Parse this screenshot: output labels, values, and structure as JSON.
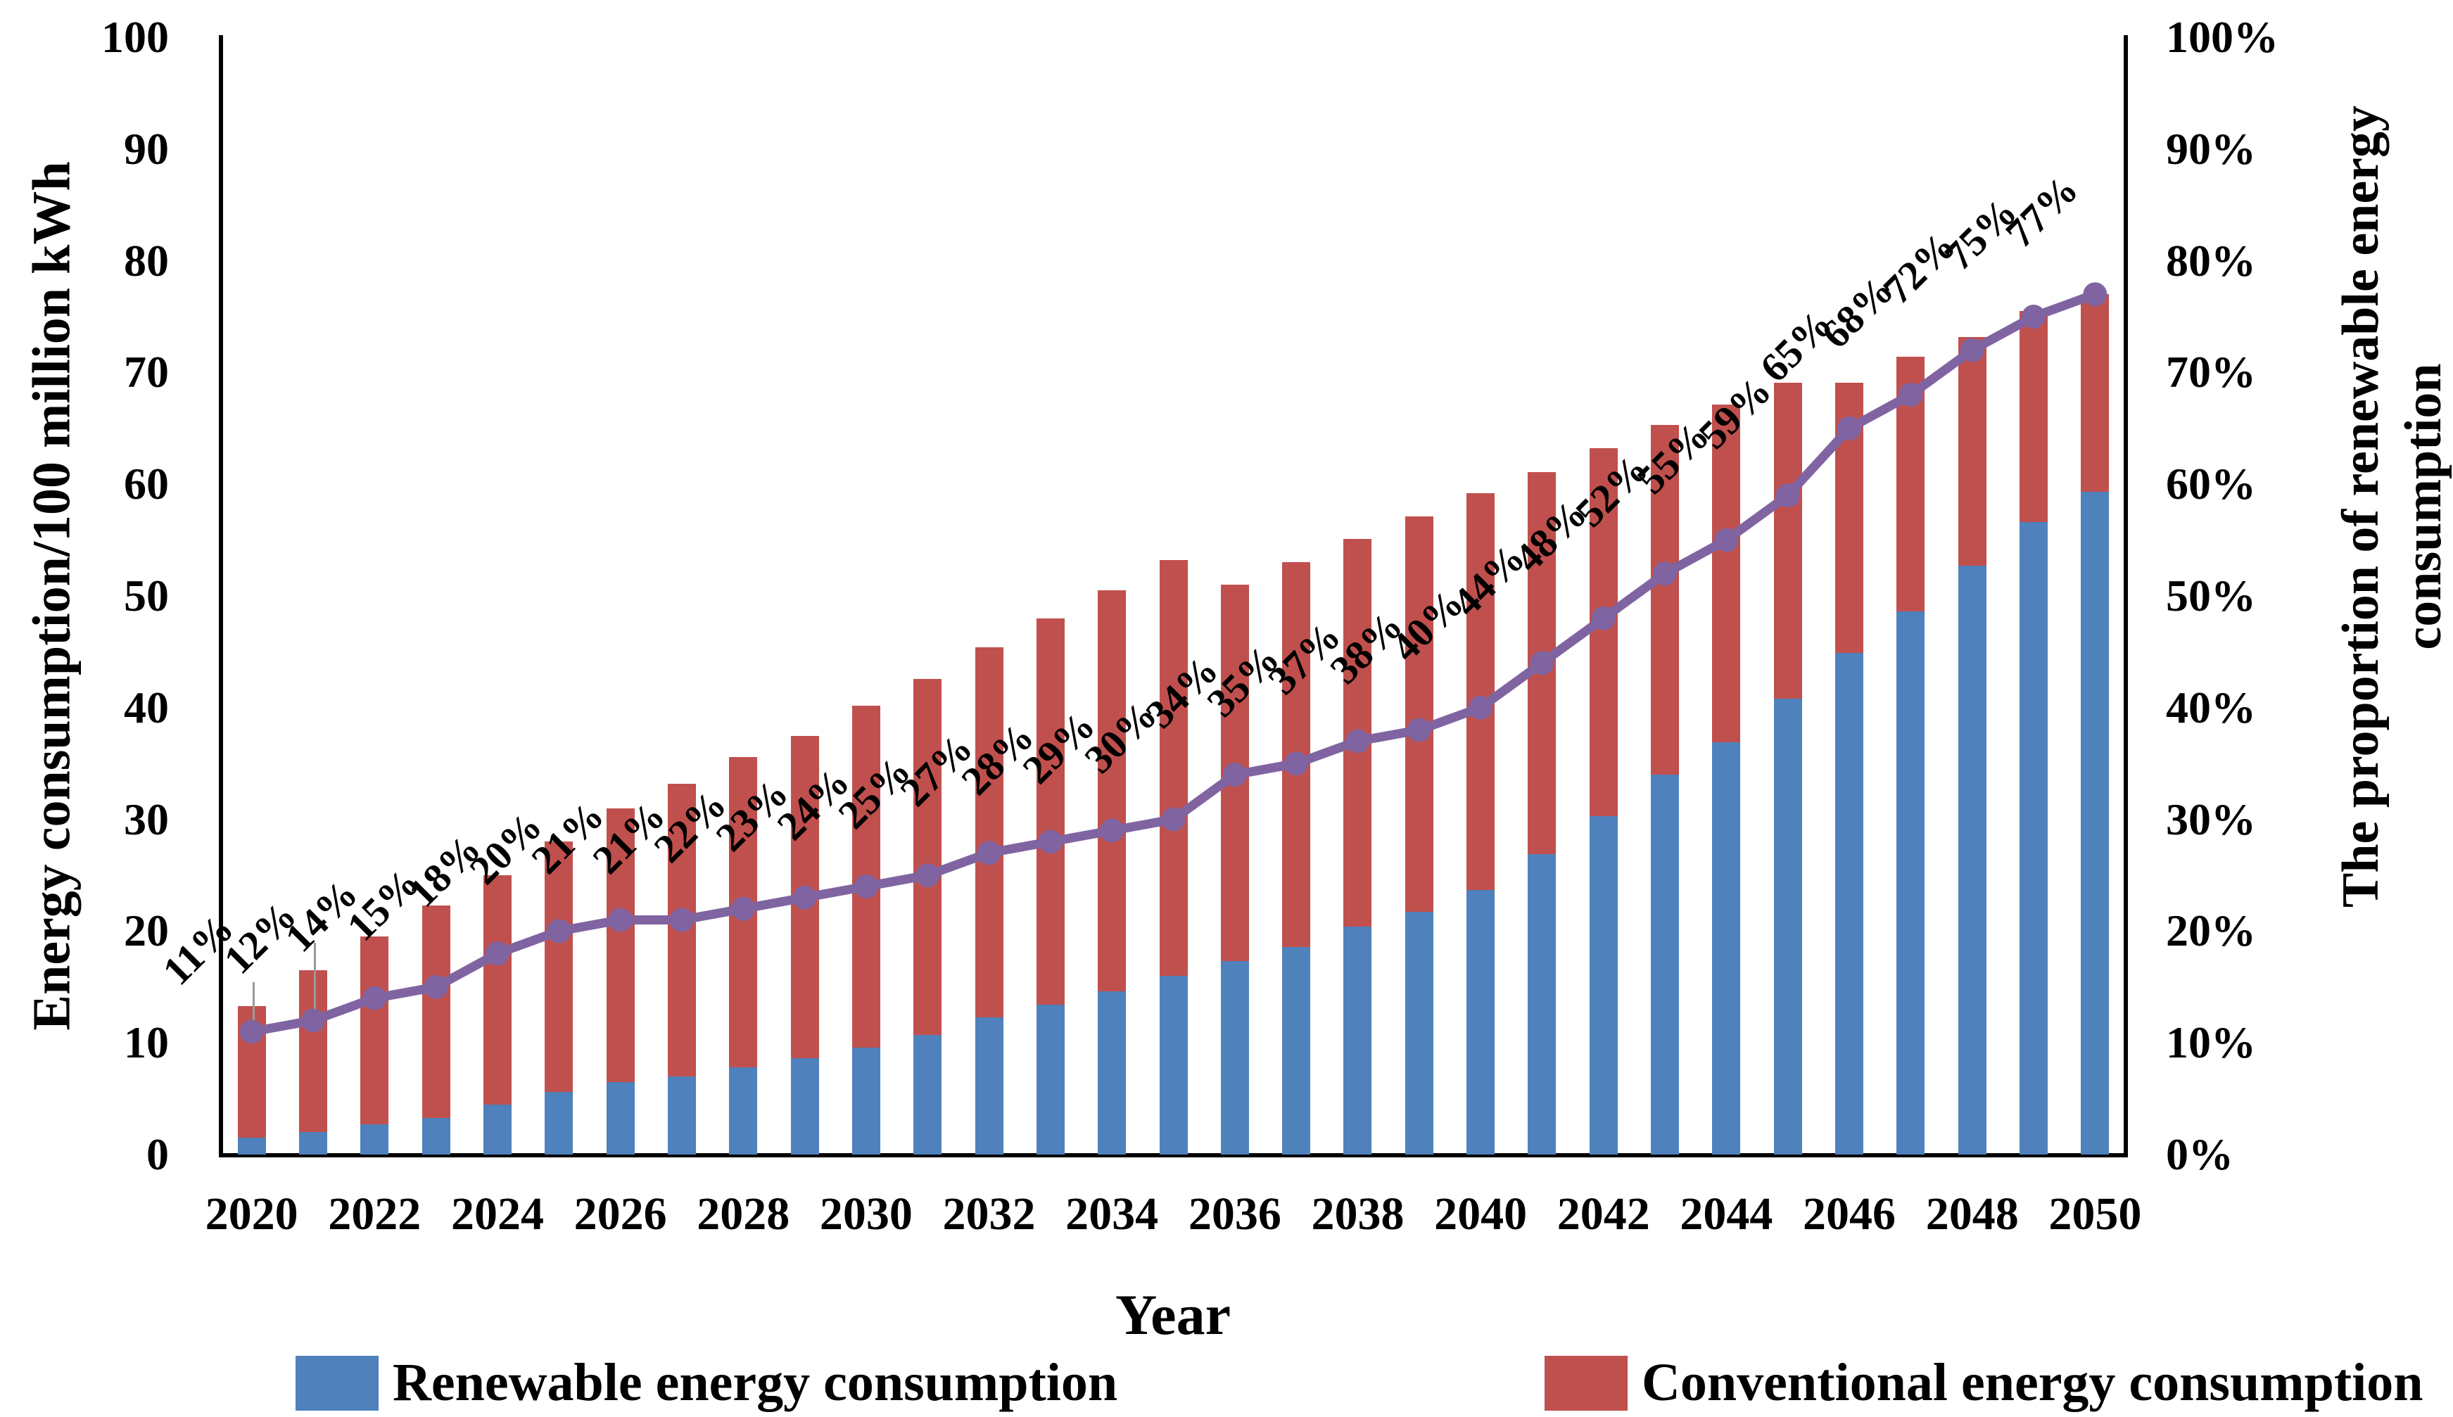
{
  "axes": {
    "left_title": "Energy consumption/100 million kWh",
    "right_title_line1": "The proportion of renewable energy",
    "right_title_line2": "consumption",
    "x_title": "Year",
    "left_ticks": [
      "0",
      "10",
      "20",
      "30",
      "40",
      "50",
      "60",
      "70",
      "80",
      "90",
      "100"
    ],
    "right_ticks": [
      "0%",
      "10%",
      "20%",
      "30%",
      "40%",
      "50%",
      "60%",
      "70%",
      "80%",
      "90%",
      "100%"
    ]
  },
  "legend": [
    {
      "label": "Renewable energy consumption",
      "color": "#4F81BD"
    },
    {
      "label": "Conventional energy consumption",
      "color": "#C0504D"
    }
  ],
  "colors": {
    "renewable": "#4F81BD",
    "conventional": "#C0504D",
    "proportion_line": "#8064A2",
    "axis": "#000000",
    "leader_line": "#9a9a9a"
  },
  "chart_data": {
    "type": "bar",
    "subtype": "stacked-with-line",
    "title": "",
    "xlabel": "Year",
    "ylabel": "Energy consumption/100 million kWh",
    "y2label": "The proportion of renewable energy consumption",
    "ylim": [
      0,
      100
    ],
    "y2lim_pct": [
      0,
      100
    ],
    "grid": false,
    "legend_position": "bottom",
    "x_tick_step": 2,
    "categories": [
      2020,
      2021,
      2022,
      2023,
      2024,
      2025,
      2026,
      2027,
      2028,
      2029,
      2030,
      2031,
      2032,
      2033,
      2034,
      2035,
      2036,
      2037,
      2038,
      2039,
      2040,
      2041,
      2042,
      2043,
      2044,
      2045,
      2046,
      2047,
      2048,
      2049,
      2050
    ],
    "series": [
      {
        "name": "Renewable energy consumption",
        "type": "bar-stack",
        "color": "#4F81BD",
        "values": [
          1.5,
          2.0,
          2.7,
          3.3,
          4.5,
          5.6,
          6.5,
          7.0,
          7.8,
          8.6,
          9.6,
          10.7,
          12.3,
          13.4,
          14.6,
          16.0,
          17.3,
          18.6,
          20.4,
          21.7,
          23.7,
          26.9,
          30.3,
          34.0,
          36.9,
          40.8,
          44.9,
          48.6,
          52.7,
          56.6,
          59.3
        ]
      },
      {
        "name": "Conventional energy consumption",
        "type": "bar-stack",
        "color": "#C0504D",
        "values": [
          11.8,
          14.5,
          16.8,
          19.0,
          20.5,
          22.4,
          24.5,
          26.2,
          27.8,
          28.9,
          30.6,
          31.9,
          33.1,
          34.6,
          35.9,
          37.2,
          33.7,
          34.4,
          34.7,
          35.4,
          35.5,
          34.2,
          32.9,
          31.3,
          30.2,
          28.3,
          24.2,
          22.8,
          20.5,
          18.9,
          17.7
        ]
      },
      {
        "name": "The proportion of renewable energy consumption",
        "type": "line",
        "color": "#8064A2",
        "marker": "circle",
        "values_pct": [
          11,
          12,
          14,
          15,
          18,
          20,
          21,
          21,
          22,
          23,
          24,
          25,
          27,
          28,
          29,
          30,
          34,
          35,
          37,
          38,
          40,
          44,
          48,
          52,
          55,
          59,
          65,
          68,
          72,
          75,
          77
        ],
        "data_labels": [
          "11%",
          "12%",
          "14%",
          "15%",
          "18%",
          "20%",
          "21%",
          "21%",
          "22%",
          "23%",
          "24%",
          "25%",
          "27%",
          "28%",
          "29%",
          "30%",
          "34%",
          "35%",
          "37%",
          "38%",
          "40%",
          "44%",
          "48%",
          "52%",
          "55%",
          "59%",
          "65%",
          "68%",
          "72%",
          "75%",
          "77%"
        ],
        "data_label_rotation_deg": -45
      }
    ],
    "annotations": {
      "leader_line_year_indexes": [
        0,
        1
      ]
    }
  }
}
